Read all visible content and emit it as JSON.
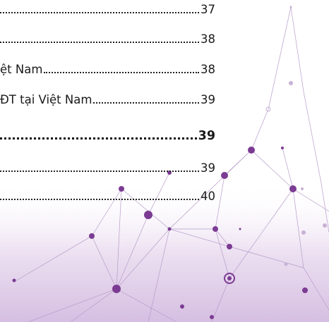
{
  "toc": [
    {
      "page": "37"
    },
    {
      "page": "38"
    },
    {
      "title": "ệt Nam",
      "page": "38"
    },
    {
      "title": "ĐT tại Việt Nam",
      "page": "39"
    },
    {
      "page": "39",
      "bold": true
    },
    {
      "page": "39"
    },
    {
      "page": "40"
    }
  ]
}
